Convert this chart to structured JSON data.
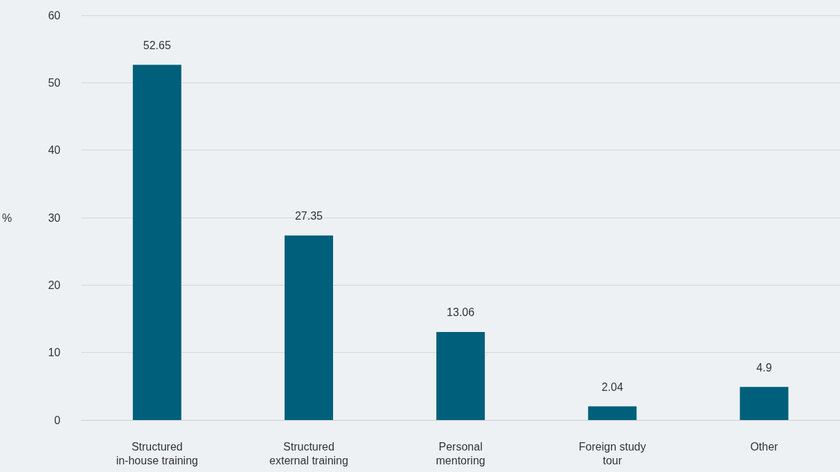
{
  "chart_data": {
    "type": "bar",
    "ylabel": "%",
    "categories": [
      "Structured\nin-house training",
      "Structured\nexternal training",
      "Personal\nmentoring",
      "Foreign study\ntour",
      "Other"
    ],
    "values": [
      52.65,
      27.35,
      13.06,
      2.04,
      4.9
    ],
    "color": "#005f7a",
    "ylim": [
      0,
      60
    ],
    "yticks": [
      0,
      10,
      20,
      30,
      40,
      50,
      60
    ],
    "grid": "y",
    "data_labels": true
  }
}
